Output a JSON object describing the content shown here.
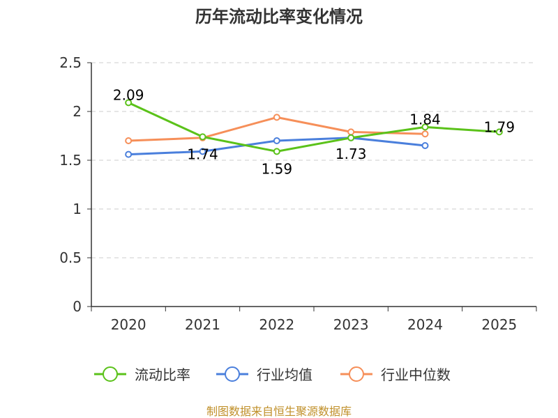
{
  "chart_data": {
    "type": "line",
    "title": "历年流动比率变化情况",
    "categories": [
      "2020",
      "2021",
      "2022",
      "2023",
      "2024",
      "2025"
    ],
    "ylim": [
      0,
      2.5
    ],
    "yticks": [
      "0",
      "0.5",
      "1",
      "1.5",
      "2",
      "2.5"
    ],
    "grid": true,
    "legend_position": "bottom",
    "series": [
      {
        "name": "流动比率",
        "color": "#5bc21a",
        "values": [
          2.09,
          1.74,
          1.59,
          1.73,
          1.84,
          1.79
        ],
        "labels": [
          "2.09",
          "1.74",
          "1.59",
          "1.73",
          "1.84",
          "1.79"
        ]
      },
      {
        "name": "行业均值",
        "color": "#4a7fdc",
        "values": [
          1.56,
          1.59,
          1.7,
          1.73,
          1.65,
          null
        ]
      },
      {
        "name": "行业中位数",
        "color": "#f68f59",
        "values": [
          1.7,
          1.73,
          1.94,
          1.79,
          1.77,
          null
        ]
      }
    ]
  },
  "source_note": "制图数据来自恒生聚源数据库"
}
